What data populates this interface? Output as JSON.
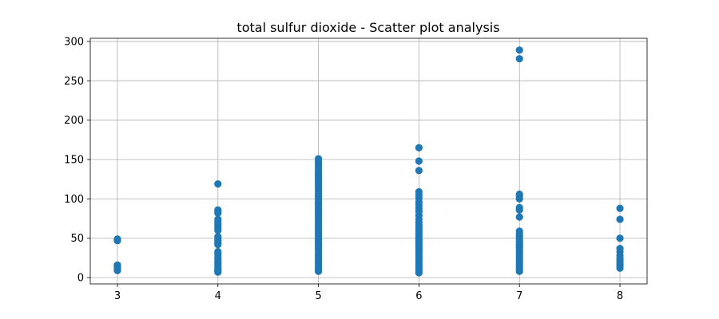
{
  "chart_data": {
    "type": "scatter",
    "title": "total sulfur dioxide - Scatter plot analysis",
    "xlabel": "",
    "ylabel": "",
    "xlim": [
      2.73,
      8.27
    ],
    "ylim": [
      -8,
      304
    ],
    "xticks": [
      3,
      4,
      5,
      6,
      7,
      8
    ],
    "yticks": [
      0,
      50,
      100,
      150,
      200,
      250,
      300
    ],
    "grid": true,
    "marker_color": "#1f77b4",
    "points": [
      {
        "x": 3,
        "y": 9
      },
      {
        "x": 3,
        "y": 11
      },
      {
        "x": 3,
        "y": 12
      },
      {
        "x": 3,
        "y": 14
      },
      {
        "x": 3,
        "y": 15
      },
      {
        "x": 3,
        "y": 16
      },
      {
        "x": 3,
        "y": 47
      },
      {
        "x": 3,
        "y": 49
      },
      {
        "x": 4,
        "y": 7
      },
      {
        "x": 4,
        "y": 9
      },
      {
        "x": 4,
        "y": 10
      },
      {
        "x": 4,
        "y": 12
      },
      {
        "x": 4,
        "y": 15
      },
      {
        "x": 4,
        "y": 18
      },
      {
        "x": 4,
        "y": 20
      },
      {
        "x": 4,
        "y": 23
      },
      {
        "x": 4,
        "y": 25
      },
      {
        "x": 4,
        "y": 29
      },
      {
        "x": 4,
        "y": 31
      },
      {
        "x": 4,
        "y": 33
      },
      {
        "x": 4,
        "y": 42
      },
      {
        "x": 4,
        "y": 44
      },
      {
        "x": 4,
        "y": 47
      },
      {
        "x": 4,
        "y": 50
      },
      {
        "x": 4,
        "y": 52
      },
      {
        "x": 4,
        "y": 60
      },
      {
        "x": 4,
        "y": 63
      },
      {
        "x": 4,
        "y": 66
      },
      {
        "x": 4,
        "y": 68
      },
      {
        "x": 4,
        "y": 71
      },
      {
        "x": 4,
        "y": 74
      },
      {
        "x": 4,
        "y": 82
      },
      {
        "x": 4,
        "y": 85
      },
      {
        "x": 4,
        "y": 86
      },
      {
        "x": 4,
        "y": 119
      },
      {
        "x": 5,
        "y": 8
      },
      {
        "x": 5,
        "y": 10
      },
      {
        "x": 5,
        "y": 13
      },
      {
        "x": 5,
        "y": 16
      },
      {
        "x": 5,
        "y": 19
      },
      {
        "x": 5,
        "y": 22
      },
      {
        "x": 5,
        "y": 25
      },
      {
        "x": 5,
        "y": 28
      },
      {
        "x": 5,
        "y": 31
      },
      {
        "x": 5,
        "y": 34
      },
      {
        "x": 5,
        "y": 37
      },
      {
        "x": 5,
        "y": 40
      },
      {
        "x": 5,
        "y": 43
      },
      {
        "x": 5,
        "y": 46
      },
      {
        "x": 5,
        "y": 49
      },
      {
        "x": 5,
        "y": 52
      },
      {
        "x": 5,
        "y": 55
      },
      {
        "x": 5,
        "y": 58
      },
      {
        "x": 5,
        "y": 61
      },
      {
        "x": 5,
        "y": 64
      },
      {
        "x": 5,
        "y": 67
      },
      {
        "x": 5,
        "y": 70
      },
      {
        "x": 5,
        "y": 73
      },
      {
        "x": 5,
        "y": 76
      },
      {
        "x": 5,
        "y": 79
      },
      {
        "x": 5,
        "y": 82
      },
      {
        "x": 5,
        "y": 85
      },
      {
        "x": 5,
        "y": 88
      },
      {
        "x": 5,
        "y": 91
      },
      {
        "x": 5,
        "y": 94
      },
      {
        "x": 5,
        "y": 97
      },
      {
        "x": 5,
        "y": 100
      },
      {
        "x": 5,
        "y": 103
      },
      {
        "x": 5,
        "y": 106
      },
      {
        "x": 5,
        "y": 109
      },
      {
        "x": 5,
        "y": 112
      },
      {
        "x": 5,
        "y": 115
      },
      {
        "x": 5,
        "y": 118
      },
      {
        "x": 5,
        "y": 121
      },
      {
        "x": 5,
        "y": 124
      },
      {
        "x": 5,
        "y": 127
      },
      {
        "x": 5,
        "y": 130
      },
      {
        "x": 5,
        "y": 133
      },
      {
        "x": 5,
        "y": 136
      },
      {
        "x": 5,
        "y": 139
      },
      {
        "x": 5,
        "y": 142
      },
      {
        "x": 5,
        "y": 145
      },
      {
        "x": 5,
        "y": 148
      },
      {
        "x": 5,
        "y": 151
      },
      {
        "x": 6,
        "y": 6
      },
      {
        "x": 6,
        "y": 9
      },
      {
        "x": 6,
        "y": 12
      },
      {
        "x": 6,
        "y": 15
      },
      {
        "x": 6,
        "y": 18
      },
      {
        "x": 6,
        "y": 21
      },
      {
        "x": 6,
        "y": 24
      },
      {
        "x": 6,
        "y": 27
      },
      {
        "x": 6,
        "y": 30
      },
      {
        "x": 6,
        "y": 33
      },
      {
        "x": 6,
        "y": 36
      },
      {
        "x": 6,
        "y": 39
      },
      {
        "x": 6,
        "y": 42
      },
      {
        "x": 6,
        "y": 45
      },
      {
        "x": 6,
        "y": 48
      },
      {
        "x": 6,
        "y": 51
      },
      {
        "x": 6,
        "y": 54
      },
      {
        "x": 6,
        "y": 57
      },
      {
        "x": 6,
        "y": 60
      },
      {
        "x": 6,
        "y": 63
      },
      {
        "x": 6,
        "y": 66
      },
      {
        "x": 6,
        "y": 70
      },
      {
        "x": 6,
        "y": 74
      },
      {
        "x": 6,
        "y": 79
      },
      {
        "x": 6,
        "y": 84
      },
      {
        "x": 6,
        "y": 88
      },
      {
        "x": 6,
        "y": 92
      },
      {
        "x": 6,
        "y": 96
      },
      {
        "x": 6,
        "y": 101
      },
      {
        "x": 6,
        "y": 105
      },
      {
        "x": 6,
        "y": 109
      },
      {
        "x": 6,
        "y": 136
      },
      {
        "x": 6,
        "y": 148
      },
      {
        "x": 6,
        "y": 165
      },
      {
        "x": 7,
        "y": 8
      },
      {
        "x": 7,
        "y": 11
      },
      {
        "x": 7,
        "y": 14
      },
      {
        "x": 7,
        "y": 17
      },
      {
        "x": 7,
        "y": 20
      },
      {
        "x": 7,
        "y": 23
      },
      {
        "x": 7,
        "y": 26
      },
      {
        "x": 7,
        "y": 29
      },
      {
        "x": 7,
        "y": 32
      },
      {
        "x": 7,
        "y": 35
      },
      {
        "x": 7,
        "y": 38
      },
      {
        "x": 7,
        "y": 41
      },
      {
        "x": 7,
        "y": 44
      },
      {
        "x": 7,
        "y": 47
      },
      {
        "x": 7,
        "y": 50
      },
      {
        "x": 7,
        "y": 53
      },
      {
        "x": 7,
        "y": 56
      },
      {
        "x": 7,
        "y": 59
      },
      {
        "x": 7,
        "y": 77
      },
      {
        "x": 7,
        "y": 86
      },
      {
        "x": 7,
        "y": 89
      },
      {
        "x": 7,
        "y": 100
      },
      {
        "x": 7,
        "y": 103
      },
      {
        "x": 7,
        "y": 106
      },
      {
        "x": 7,
        "y": 278
      },
      {
        "x": 7,
        "y": 289
      },
      {
        "x": 8,
        "y": 12
      },
      {
        "x": 8,
        "y": 15
      },
      {
        "x": 8,
        "y": 18
      },
      {
        "x": 8,
        "y": 21
      },
      {
        "x": 8,
        "y": 24
      },
      {
        "x": 8,
        "y": 28
      },
      {
        "x": 8,
        "y": 33
      },
      {
        "x": 8,
        "y": 37
      },
      {
        "x": 8,
        "y": 50
      },
      {
        "x": 8,
        "y": 74
      },
      {
        "x": 8,
        "y": 88
      }
    ]
  }
}
